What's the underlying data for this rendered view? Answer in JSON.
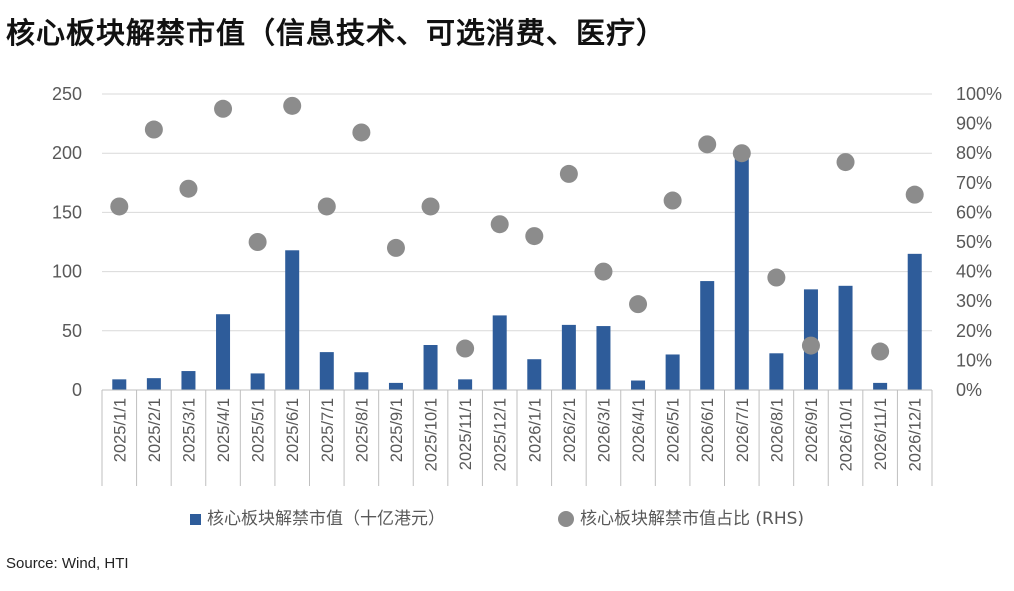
{
  "title": "核心板块解禁市值（信息技术、可选消费、医疗）",
  "source": "Source: Wind, HTI",
  "chart_data": {
    "type": "bar+scatter",
    "categories": [
      "2025/1/1",
      "2025/2/1",
      "2025/3/1",
      "2025/4/1",
      "2025/5/1",
      "2025/6/1",
      "2025/7/1",
      "2025/8/1",
      "2025/9/1",
      "2025/10/1",
      "2025/11/1",
      "2025/12/1",
      "2026/1/1",
      "2026/2/1",
      "2026/3/1",
      "2026/4/1",
      "2026/5/1",
      "2026/6/1",
      "2026/7/1",
      "2026/8/1",
      "2026/9/1",
      "2026/10/1",
      "2026/11/1",
      "2026/12/1"
    ],
    "series": [
      {
        "name": "核心板块解禁市值（十亿港元）",
        "type": "bar",
        "axis": "left",
        "color": "#2E5C9A",
        "values": [
          9,
          10,
          16,
          64,
          14,
          118,
          32,
          15,
          6,
          38,
          9,
          63,
          26,
          55,
          54,
          8,
          30,
          92,
          198,
          31,
          85,
          88,
          6,
          115
        ]
      },
      {
        "name": "核心板块解禁市值占比 (RHS)",
        "type": "scatter",
        "axis": "right",
        "color": "#8C8C8C",
        "values": [
          0.62,
          0.88,
          0.68,
          0.95,
          0.5,
          0.96,
          0.62,
          0.87,
          0.48,
          0.62,
          0.14,
          0.56,
          0.52,
          0.73,
          0.4,
          0.29,
          0.64,
          0.83,
          0.8,
          0.38,
          0.15,
          0.77,
          0.13,
          0.66
        ]
      }
    ],
    "y_left": {
      "min": 0,
      "max": 250,
      "ticks": [
        "0",
        "50",
        "100",
        "150",
        "200",
        "250"
      ]
    },
    "y_right": {
      "min": 0,
      "max": 1,
      "ticks": [
        "0%",
        "10%",
        "20%",
        "30%",
        "40%",
        "50%",
        "60%",
        "70%",
        "80%",
        "90%",
        "100%"
      ]
    },
    "grid": true,
    "legend_position": "bottom"
  }
}
